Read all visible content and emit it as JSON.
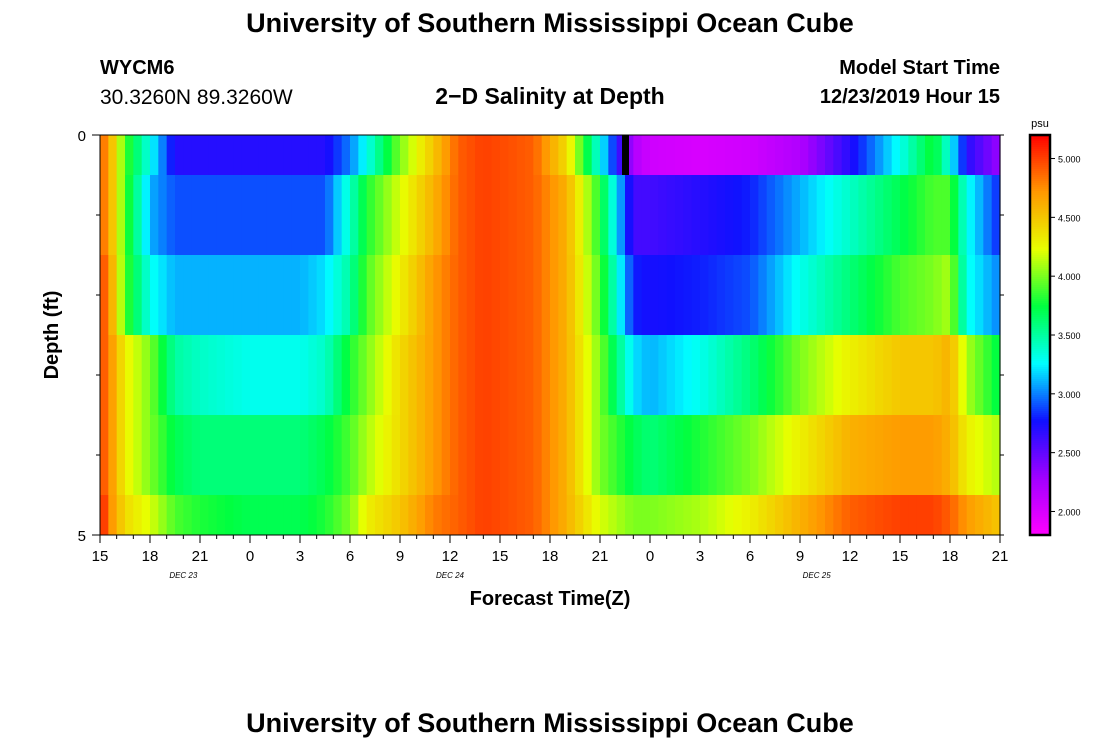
{
  "header": {
    "title": "University of Southern Mississippi Ocean Cube",
    "station": "WYCM6",
    "coords": "30.3260N 89.3260W",
    "plot_title": "2−D Salinity at Depth",
    "model_start_label": "Model Start Time",
    "model_start_value": "12/23/2019 Hour 15"
  },
  "footer": {
    "title": "University of Southern Mississippi Ocean Cube"
  },
  "colors": {
    "background": "#ffffff",
    "scale": [
      "#ff00ff",
      "#a000ff",
      "#1010ff",
      "#00ffff",
      "#00ff40",
      "#e8ff00",
      "#ff9900",
      "#ff0000"
    ],
    "missing_marker": "#000000"
  },
  "chart_data": {
    "type": "heatmap",
    "xlabel": "Forecast Time(Z)",
    "ylabel": "Depth (ft)",
    "y_ticks": [
      "0",
      "5"
    ],
    "ylim": [
      0,
      5
    ],
    "x_ticks": [
      "15",
      "18",
      "21",
      "0",
      "3",
      "6",
      "9",
      "12",
      "15",
      "18",
      "21",
      "0",
      "3",
      "6",
      "9",
      "12",
      "15",
      "18",
      "21"
    ],
    "date_labels": [
      {
        "label": "DEC 23",
        "at_hours": 5
      },
      {
        "label": "DEC 24",
        "at_hours": 21
      },
      {
        "label": "DEC 25",
        "at_hours": 43
      }
    ],
    "x_hours_range": [
      0,
      54
    ],
    "colorbar": {
      "unit": "psu",
      "tick_labels": [
        "5.000",
        "4.500",
        "4.000",
        "3.500",
        "3.000",
        "2.500",
        "2.000"
      ],
      "tick_values": [
        5.0,
        4.5,
        4.0,
        3.5,
        3.0,
        2.5,
        2.0
      ],
      "range": [
        1.8,
        5.2
      ]
    },
    "depth_layers": [
      "0-0.5",
      "0.5-1.5",
      "1.5-2.5",
      "2.5-3.5",
      "3.5-4.5",
      "4.5-5"
    ],
    "keyframes_hours": [
      0,
      0.5,
      1.5,
      3,
      4.5,
      6,
      9,
      12,
      13.5,
      15,
      16,
      18,
      20,
      21.5,
      23,
      26,
      28,
      30,
      32,
      33,
      36,
      39,
      42,
      45,
      48,
      50,
      51,
      52,
      54
    ],
    "keyframe_values": [
      [
        4.9,
        4.7,
        3.9,
        3.3,
        2.7,
        2.7,
        2.7,
        2.7,
        2.7,
        3.0,
        3.3,
        4.0,
        4.5,
        4.9,
        5.0,
        4.9,
        4.4,
        3.3,
        2.2,
        2.05,
        2.0,
        2.05,
        2.2,
        2.7,
        3.3,
        3.8,
        3.3,
        2.7,
        2.3
      ],
      [
        4.9,
        4.7,
        3.9,
        3.1,
        2.9,
        2.9,
        2.9,
        2.9,
        2.9,
        3.4,
        3.8,
        4.2,
        4.6,
        4.9,
        5.0,
        4.9,
        4.6,
        3.8,
        2.6,
        2.6,
        2.7,
        2.8,
        3.1,
        3.4,
        3.7,
        3.9,
        3.9,
        3.3,
        2.8
      ],
      [
        5.0,
        4.8,
        3.9,
        3.3,
        3.1,
        3.1,
        3.1,
        3.1,
        3.2,
        3.5,
        3.9,
        4.3,
        4.7,
        4.9,
        5.0,
        4.9,
        4.6,
        3.9,
        2.8,
        2.75,
        2.8,
        2.9,
        3.3,
        3.6,
        3.9,
        4.0,
        4.1,
        3.3,
        3.0
      ],
      [
        5.0,
        4.8,
        4.3,
        4.0,
        3.5,
        3.4,
        3.3,
        3.3,
        3.4,
        3.8,
        4.0,
        4.4,
        4.7,
        4.9,
        5.0,
        4.9,
        4.6,
        4.0,
        3.2,
        3.1,
        3.3,
        3.6,
        4.0,
        4.3,
        4.5,
        4.5,
        4.6,
        4.1,
        3.7
      ],
      [
        5.0,
        4.8,
        4.3,
        4.0,
        3.7,
        3.6,
        3.6,
        3.6,
        3.7,
        3.9,
        4.1,
        4.4,
        4.7,
        4.9,
        5.0,
        4.9,
        4.6,
        4.0,
        3.7,
        3.6,
        3.8,
        4.0,
        4.3,
        4.6,
        4.7,
        4.7,
        4.6,
        4.3,
        4.1
      ],
      [
        5.2,
        4.8,
        4.4,
        4.2,
        3.9,
        3.8,
        3.7,
        3.7,
        3.8,
        4.0,
        4.3,
        4.5,
        4.8,
        4.9,
        5.0,
        4.9,
        4.6,
        4.2,
        4.0,
        4.0,
        4.1,
        4.3,
        4.6,
        4.9,
        5.0,
        5.0,
        4.9,
        4.7,
        4.5
      ]
    ],
    "missing_marker_hours": 31.5
  }
}
